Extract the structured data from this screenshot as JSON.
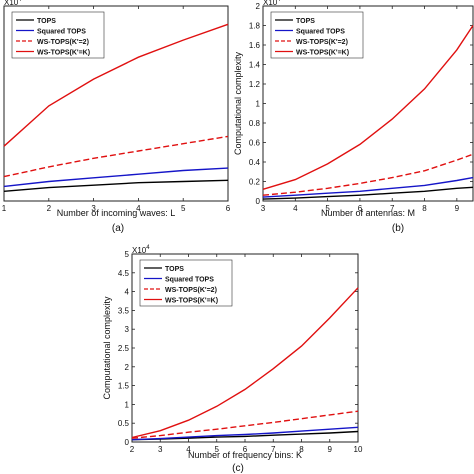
{
  "legend": [
    {
      "name": "TOPS",
      "color": "#000000",
      "dash": false
    },
    {
      "name": "Squared TOPS",
      "color": "#1515c8",
      "dash": false
    },
    {
      "name": "WS-TOPS(K'=2)",
      "color": "#e01010",
      "dash": true
    },
    {
      "name": "WS-TOPS(K'=K)",
      "color": "#e01010",
      "dash": false
    }
  ],
  "chart_data": [
    {
      "type": "line",
      "panel_label": "(a)",
      "xlabel": "Number of incoming waves: L",
      "ylabel": "",
      "exponent": "X10",
      "exponent_power": "4",
      "x": [
        1,
        2,
        3,
        4,
        5,
        6
      ],
      "xlim": [
        1,
        6
      ],
      "ylim": [
        0,
        1.6
      ],
      "xticks": [
        "1",
        "2",
        "3",
        "4",
        "5",
        "6"
      ],
      "yticks": [],
      "legend_visible": true,
      "series": [
        {
          "name": "TOPS",
          "values": [
            0.08,
            0.11,
            0.13,
            0.15,
            0.16,
            0.17
          ]
        },
        {
          "name": "Squared TOPS",
          "values": [
            0.12,
            0.16,
            0.19,
            0.22,
            0.25,
            0.27
          ]
        },
        {
          "name": "WS-TOPS(K'=2)",
          "values": [
            0.2,
            0.28,
            0.35,
            0.41,
            0.47,
            0.53
          ]
        },
        {
          "name": "WS-TOPS(K'=K)",
          "values": [
            0.45,
            0.78,
            1.0,
            1.18,
            1.32,
            1.45
          ]
        }
      ]
    },
    {
      "type": "line",
      "panel_label": "(b)",
      "xlabel": "Number of antennas: M",
      "ylabel": "Computational complexity",
      "exponent": "X10",
      "exponent_power": "4",
      "x": [
        3,
        4,
        5,
        6,
        7,
        8,
        9,
        9.5
      ],
      "xlim": [
        3,
        9.5
      ],
      "ylim": [
        0,
        2
      ],
      "xticks": [
        "3",
        "4",
        "5",
        "6",
        "7",
        "8",
        "9"
      ],
      "yticks": [
        "0",
        "0.2",
        "0.4",
        "0.6",
        "0.8",
        "1",
        "1.2",
        "1.4",
        "1.6",
        "1.8",
        "2"
      ],
      "legend_visible": true,
      "series": [
        {
          "name": "TOPS",
          "values": [
            0.02,
            0.03,
            0.045,
            0.06,
            0.08,
            0.1,
            0.13,
            0.14
          ]
        },
        {
          "name": "Squared TOPS",
          "values": [
            0.04,
            0.06,
            0.08,
            0.1,
            0.13,
            0.16,
            0.21,
            0.24
          ]
        },
        {
          "name": "WS-TOPS(K'=2)",
          "values": [
            0.06,
            0.09,
            0.13,
            0.18,
            0.24,
            0.31,
            0.42,
            0.48
          ]
        },
        {
          "name": "WS-TOPS(K'=K)",
          "values": [
            0.12,
            0.22,
            0.38,
            0.58,
            0.84,
            1.15,
            1.55,
            1.8
          ]
        }
      ]
    },
    {
      "type": "line",
      "panel_label": "(c)",
      "xlabel": "Number of frequency bins: K",
      "ylabel": "Computational complexity",
      "exponent": "X10",
      "exponent_power": "4",
      "x": [
        2,
        3,
        4,
        5,
        6,
        7,
        8,
        9,
        10
      ],
      "xlim": [
        2,
        10
      ],
      "ylim": [
        0,
        5
      ],
      "xticks": [
        "2",
        "3",
        "4",
        "5",
        "6",
        "7",
        "8",
        "9",
        "10"
      ],
      "yticks": [
        "0",
        "0.5",
        "1",
        "1.5",
        "2",
        "2.5",
        "3",
        "3.5",
        "4",
        "4.5",
        "5"
      ],
      "legend_visible": true,
      "series": [
        {
          "name": "TOPS",
          "values": [
            0.06,
            0.08,
            0.1,
            0.13,
            0.15,
            0.18,
            0.21,
            0.24,
            0.28
          ]
        },
        {
          "name": "Squared TOPS",
          "values": [
            0.06,
            0.09,
            0.13,
            0.17,
            0.2,
            0.24,
            0.29,
            0.34,
            0.39
          ]
        },
        {
          "name": "WS-TOPS(K'=2)",
          "values": [
            0.1,
            0.17,
            0.26,
            0.34,
            0.43,
            0.52,
            0.62,
            0.72,
            0.82
          ]
        },
        {
          "name": "WS-TOPS(K'=K)",
          "values": [
            0.12,
            0.3,
            0.58,
            0.95,
            1.4,
            1.95,
            2.55,
            3.3,
            4.1
          ]
        }
      ]
    }
  ]
}
